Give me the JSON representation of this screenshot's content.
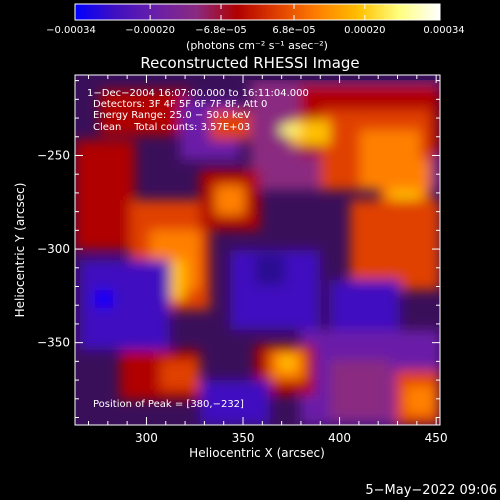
{
  "chart_data": {
    "type": "heatmap",
    "title": "Reconstructed RHESSI Image",
    "xlabel": "Heliocentric X (arcsec)",
    "ylabel": "Heliocentric Y (arcsec)",
    "xlim": [
      263,
      452
    ],
    "ylim": [
      -394,
      -207
    ],
    "x_ticks": [
      300,
      350,
      400,
      450
    ],
    "y_ticks": [
      -250,
      -300,
      -350
    ],
    "colorbar": {
      "range": [
        -0.00034,
        0.00034
      ],
      "tick_values": [
        -0.00034,
        -0.0002,
        -6.8e-05,
        6.8e-05,
        0.0002,
        0.00034
      ],
      "tick_labels": [
        "−0.00034",
        "−0.00020",
        "−6.8e−05",
        "6.8e−05",
        "0.00020",
        "0.00034"
      ],
      "units_label": "(photons cm⁻² s⁻¹ asec⁻²)",
      "colormap": [
        "#0000ff",
        "#4010c0",
        "#6a1fa8",
        "#8a2a80",
        "#b00000",
        "#e04000",
        "#ff8000",
        "#ffc000",
        "#ffff80",
        "#ffffff"
      ]
    },
    "info_lines": [
      "1−Dec−2004 16:07:00.000 to 16:11:04.000",
      "Detectors: 3F 4F 5F 6F 7F 8F, Att 0",
      "Energy Range: 25.0 − 50.0 keV",
      "Clean    Total counts: 3.57E+03"
    ],
    "peak_label": "Position of Peak = [380,−232]",
    "peak_position": [
      380,
      -232
    ],
    "grid": false
  },
  "footer": {
    "date": "5−May−2022 09:06"
  }
}
